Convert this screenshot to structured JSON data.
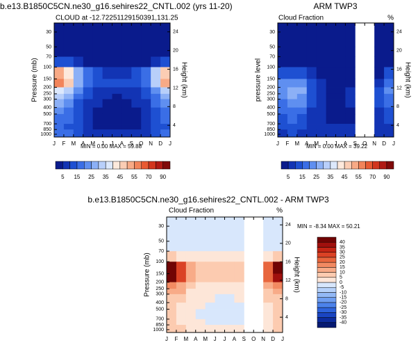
{
  "chart_data": [
    {
      "type": "contour",
      "title": "b.e13.B1850C5CN.ne30_g16.sehires22_CNTL.002 (yrs 11-20)",
      "subtitle": "CLOUD at -12.72251129150391,131.25",
      "ylabel": "Pressure (mb)",
      "y2label": "Height (km)",
      "stats": "MIN =  0.00 MAX = 59.88",
      "categories": [
        "J",
        "F",
        "M",
        "A",
        "M",
        "J",
        "J",
        "A",
        "S",
        "O",
        "N",
        "D",
        "J"
      ],
      "yticks": [
        30,
        50,
        70,
        100,
        150,
        200,
        250,
        300,
        400,
        500,
        700,
        850,
        1000
      ],
      "ylim": [
        1100,
        22
      ],
      "log_y": true,
      "y2ticks": [
        4,
        8,
        12,
        16,
        20,
        24
      ],
      "y2lim": [
        1.5,
        25.9
      ],
      "z": [
        [
          2,
          2,
          2,
          2,
          2,
          2,
          2,
          2,
          2,
          2,
          2,
          2
        ],
        [
          3,
          3,
          2,
          2,
          2,
          2,
          2,
          2,
          2,
          2,
          3,
          3
        ],
        [
          12,
          10,
          6,
          4,
          3,
          3,
          3,
          3,
          3,
          4,
          8,
          12
        ],
        [
          52,
          40,
          25,
          15,
          10,
          8,
          8,
          8,
          10,
          15,
          30,
          45
        ],
        [
          58,
          45,
          28,
          18,
          12,
          10,
          10,
          10,
          12,
          18,
          32,
          50
        ],
        [
          38,
          30,
          20,
          12,
          8,
          6,
          6,
          6,
          8,
          12,
          22,
          32
        ],
        [
          30,
          25,
          16,
          10,
          6,
          5,
          4,
          5,
          6,
          10,
          18,
          26
        ],
        [
          25,
          22,
          14,
          8,
          5,
          4,
          4,
          4,
          5,
          8,
          15,
          22
        ],
        [
          20,
          18,
          12,
          6,
          4,
          3,
          3,
          3,
          4,
          6,
          12,
          18
        ],
        [
          18,
          15,
          10,
          5,
          3,
          3,
          3,
          3,
          3,
          5,
          10,
          16
        ],
        [
          15,
          14,
          10,
          6,
          4,
          4,
          4,
          4,
          4,
          6,
          10,
          14
        ],
        [
          16,
          15,
          12,
          9,
          8,
          7,
          7,
          7,
          8,
          9,
          12,
          15
        ]
      ],
      "levels": [
        5,
        10,
        15,
        20,
        25,
        30,
        35,
        40,
        45,
        50,
        55,
        60,
        70,
        80,
        90
      ],
      "colorbar_ticks": [
        5,
        15,
        25,
        35,
        45,
        55,
        70,
        90
      ],
      "colors": [
        "#0a1b8c",
        "#1234b4",
        "#1e50d2",
        "#3a6ee6",
        "#5f8ff0",
        "#8cb0f6",
        "#b8cffa",
        "#dce8fc",
        "#fde9dc",
        "#fbcdb4",
        "#f8aa86",
        "#f2845a",
        "#e85a32",
        "#d2361e",
        "#b01a14",
        "#800a0a"
      ],
      "colorbar": "horizontal"
    },
    {
      "type": "contour",
      "title": "ARM TWP3",
      "subtitle": "Cloud Fraction",
      "units": "%",
      "ylabel": "pressure level",
      "y2label": "Height (km)",
      "stats": "MIN =  0.00 MAX = 39.22",
      "categories": [
        "J",
        "F",
        "M",
        "A",
        "M",
        "J",
        "J",
        "A",
        "S",
        "O",
        "N",
        "D",
        "J"
      ],
      "yticks": [
        30,
        50,
        70,
        100,
        150,
        200,
        250,
        300,
        400,
        500,
        700,
        850,
        1000
      ],
      "ylim": [
        1100,
        22
      ],
      "log_y": true,
      "y2ticks": [
        4,
        8,
        12,
        16,
        20,
        24
      ],
      "y2lim": [
        1.5,
        25.9
      ],
      "z": [
        [
          2,
          2,
          2,
          2,
          2,
          2,
          2,
          2,
          null,
          null,
          2,
          2
        ],
        [
          2,
          2,
          2,
          2,
          2,
          2,
          2,
          2,
          null,
          null,
          2,
          2
        ],
        [
          3,
          3,
          3,
          2,
          2,
          2,
          2,
          2,
          null,
          null,
          2,
          3
        ],
        [
          12,
          12,
          10,
          5,
          3,
          2,
          2,
          2,
          null,
          null,
          4,
          10
        ],
        [
          20,
          22,
          20,
          10,
          5,
          3,
          3,
          3,
          null,
          null,
          8,
          18
        ],
        [
          22,
          26,
          25,
          12,
          6,
          4,
          4,
          5,
          null,
          null,
          10,
          20
        ],
        [
          20,
          28,
          22,
          12,
          6,
          4,
          4,
          5,
          null,
          null,
          10,
          18
        ],
        [
          18,
          22,
          20,
          10,
          5,
          4,
          4,
          5,
          null,
          null,
          10,
          16
        ],
        [
          15,
          18,
          15,
          8,
          5,
          4,
          4,
          4,
          null,
          null,
          8,
          12
        ],
        [
          12,
          15,
          12,
          7,
          5,
          4,
          4,
          4,
          null,
          null,
          6,
          10
        ],
        [
          10,
          12,
          10,
          6,
          5,
          5,
          5,
          5,
          null,
          null,
          6,
          9
        ],
        [
          8,
          10,
          8,
          6,
          5,
          5,
          5,
          5,
          null,
          null,
          6,
          8
        ]
      ],
      "levels": [
        5,
        10,
        15,
        20,
        25,
        30,
        35,
        40,
        45,
        50,
        55,
        60,
        70,
        80,
        90
      ],
      "colorbar_ticks": [
        5,
        15,
        25,
        35,
        45,
        55,
        70,
        90
      ],
      "colors": [
        "#0a1b8c",
        "#1234b4",
        "#1e50d2",
        "#3a6ee6",
        "#5f8ff0",
        "#8cb0f6",
        "#b8cffa",
        "#dce8fc",
        "#fde9dc",
        "#fbcdb4",
        "#f8aa86",
        "#f2845a",
        "#e85a32",
        "#d2361e",
        "#b01a14",
        "#800a0a"
      ],
      "colorbar": "horizontal"
    },
    {
      "type": "contour",
      "title": "b.e13.B1850C5CN.ne30_g16.sehires22_CNTL.002 - ARM TWP3",
      "subtitle": "Cloud Fraction",
      "units": "%",
      "ylabel": "Pressure (mb)",
      "y2label": "Height (km)",
      "stats": "MIN = -8.34 MAX =  50.21",
      "categories": [
        "J",
        "F",
        "M",
        "A",
        "M",
        "J",
        "J",
        "A",
        "S",
        "O",
        "N",
        "D",
        "J"
      ],
      "yticks": [
        30,
        50,
        70,
        100,
        150,
        200,
        250,
        300,
        400,
        500,
        700,
        850,
        1000
      ],
      "ylim": [
        1100,
        22
      ],
      "log_y": true,
      "y2ticks": [
        4,
        8,
        12,
        16,
        20,
        24
      ],
      "y2lim": [
        0.7,
        25.7
      ],
      "z": [
        [
          -3,
          -3,
          -3,
          -3,
          -3,
          -3,
          -3,
          -3,
          null,
          null,
          -3,
          -3
        ],
        [
          -3,
          -3,
          -3,
          -3,
          -3,
          -3,
          -3,
          -3,
          null,
          null,
          -3,
          -3
        ],
        [
          5,
          4,
          3,
          3,
          3,
          3,
          3,
          3,
          null,
          null,
          3,
          6
        ],
        [
          45,
          25,
          12,
          8,
          6,
          5,
          5,
          5,
          null,
          null,
          20,
          40
        ],
        [
          40,
          25,
          10,
          8,
          6,
          6,
          6,
          6,
          null,
          null,
          20,
          35
        ],
        [
          18,
          14,
          6,
          4,
          4,
          3,
          3,
          3,
          null,
          null,
          10,
          15
        ],
        [
          12,
          10,
          4,
          3,
          2,
          1,
          1,
          1,
          null,
          null,
          8,
          10
        ],
        [
          8,
          6,
          3,
          2,
          1,
          -1,
          -1,
          1,
          null,
          null,
          6,
          8
        ],
        [
          6,
          4,
          2,
          1,
          -1,
          -2,
          -2,
          -1,
          null,
          null,
          4,
          6
        ],
        [
          8,
          3,
          2,
          -1,
          -2,
          -2,
          -2,
          -2,
          null,
          null,
          3,
          5
        ],
        [
          6,
          4,
          2,
          1,
          -1,
          -1,
          -1,
          -2,
          null,
          null,
          3,
          5
        ],
        [
          6,
          5,
          3,
          2,
          2,
          2,
          2,
          2,
          null,
          null,
          4,
          5
        ]
      ],
      "levels": [
        -40,
        -35,
        -30,
        -25,
        -20,
        -15,
        -10,
        -5,
        0,
        5,
        10,
        15,
        20,
        25,
        30,
        35,
        40
      ],
      "colorbar_ticks": [
        -40,
        -35,
        -30,
        -25,
        -20,
        -15,
        -10,
        -5,
        0,
        5,
        10,
        15,
        20,
        25,
        30,
        35,
        40
      ],
      "colors": [
        "#061a73",
        "#0d2c9e",
        "#1a45c2",
        "#2e63dc",
        "#4c82ea",
        "#6f9ef1",
        "#93b9f6",
        "#b6d1fa",
        "#d8e7fc",
        "#fde6d8",
        "#fccbb0",
        "#f8ab88",
        "#f28a62",
        "#e8663e",
        "#da4225",
        "#c42515",
        "#a0100d",
        "#700404"
      ],
      "colorbar": "vertical"
    }
  ]
}
